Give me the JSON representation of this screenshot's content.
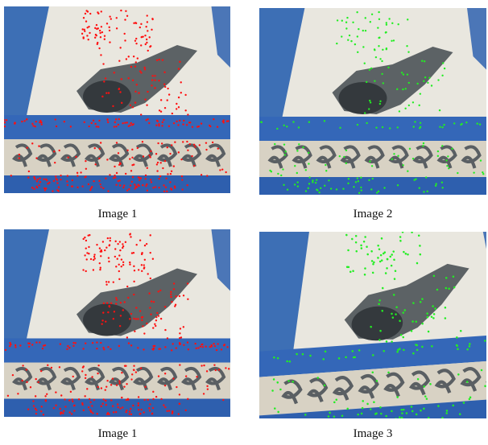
{
  "figure": {
    "panels": [
      {
        "caption": "Image 1",
        "marker_color": "#ff1010"
      },
      {
        "caption": "Image 2",
        "marker_color": "#22ee22"
      },
      {
        "caption": "Image 1",
        "marker_color": "#ff1010"
      },
      {
        "caption": "Image 3",
        "marker_color": "#22ee22"
      }
    ]
  }
}
